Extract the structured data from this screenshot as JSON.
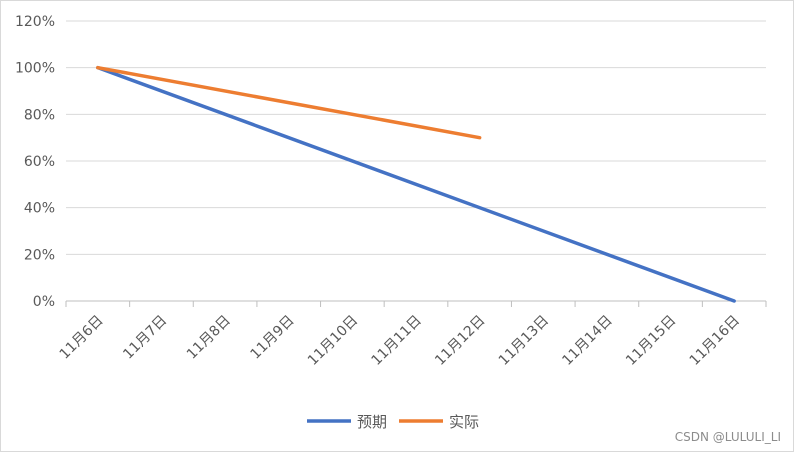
{
  "chart_data": {
    "type": "line",
    "categories": [
      "11月6日",
      "11月7日",
      "11月8日",
      "11月9日",
      "11月10日",
      "11月11日",
      "11月12日",
      "11月13日",
      "11月14日",
      "11月15日",
      "11月16日"
    ],
    "series": [
      {
        "name": "预期",
        "color": "#4472C4",
        "x": [
          0,
          10
        ],
        "values": [
          1.0,
          0.0
        ]
      },
      {
        "name": "实际",
        "color": "#ED7D31",
        "x": [
          0,
          6
        ],
        "values": [
          1.0,
          0.7
        ]
      }
    ],
    "y_ticks": [
      "0%",
      "20%",
      "40%",
      "60%",
      "80%",
      "100%",
      "120%"
    ],
    "ylim": [
      0,
      1.2
    ],
    "grid": true,
    "legend_position": "bottom",
    "title": "",
    "xlabel": "",
    "ylabel": ""
  },
  "watermark": "CSDN @LULULI_LI"
}
